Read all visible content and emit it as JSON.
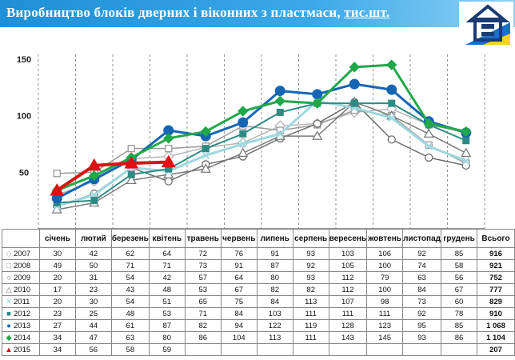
{
  "header": {
    "title_main": "Виробництво блоків дверних і віконних з пластмаси, ",
    "title_unit": "тис.шт."
  },
  "colors": {
    "header_bg": "#1f8fd6"
  },
  "icons": {
    "logo": "statistics-house-logo"
  },
  "chart_data": {
    "type": "line",
    "title": "Виробництво блоків дверних і віконних з пластмаси, тис.шт.",
    "xlabel": "",
    "ylabel": "",
    "categories": [
      "січень",
      "лютий",
      "березень",
      "квітень",
      "травень",
      "червень",
      "липень",
      "серпень",
      "вересень",
      "жовтень",
      "листопад",
      "грудень"
    ],
    "total_label": "Всього",
    "ylim": [
      0,
      150
    ],
    "yticks": [
      50,
      100,
      150
    ],
    "grid": "vertical dashed",
    "legend": "table-below",
    "series": [
      {
        "name": "2007",
        "color": "#b5b5b5",
        "marker": "diamond-open",
        "width": 1.5,
        "values": [
          30,
          42,
          62,
          64,
          72,
          76,
          91,
          93,
          103,
          106,
          92,
          85
        ],
        "total": "916"
      },
      {
        "name": "2008",
        "color": "#9a9a9a",
        "marker": "square-open",
        "width": 1.5,
        "values": [
          49,
          50,
          71,
          71,
          73,
          91,
          87,
          92,
          105,
          100,
          74,
          58
        ],
        "total": "921"
      },
      {
        "name": "2009",
        "color": "#6e6e6e",
        "marker": "circle-open",
        "width": 1.5,
        "values": [
          20,
          31,
          54,
          42,
          57,
          64,
          80,
          93,
          112,
          79,
          63,
          56
        ],
        "total": "752"
      },
      {
        "name": "2010",
        "color": "#7a7a7a",
        "marker": "triangle-open",
        "width": 1.5,
        "values": [
          17,
          23,
          43,
          48,
          53,
          67,
          82,
          82,
          112,
          100,
          84,
          67
        ],
        "total": "777"
      },
      {
        "name": "2011",
        "color": "#9fd8e0",
        "marker": "x",
        "width": 3,
        "values": [
          20,
          30,
          54,
          51,
          65,
          75,
          84,
          113,
          107,
          98,
          73,
          60
        ],
        "total": "829"
      },
      {
        "name": "2012",
        "color": "#2e8b84",
        "marker": "square",
        "width": 2,
        "values": [
          23,
          25,
          48,
          53,
          71,
          84,
          103,
          111,
          111,
          111,
          92,
          78
        ],
        "total": "910"
      },
      {
        "name": "2013",
        "color": "#1565b5",
        "marker": "circle",
        "width": 3,
        "values": [
          27,
          44,
          61,
          87,
          82,
          94,
          122,
          119,
          128,
          123,
          95,
          85
        ],
        "total": "1 068"
      },
      {
        "name": "2014",
        "color": "#20a84a",
        "marker": "diamond",
        "width": 3,
        "values": [
          34,
          47,
          63,
          80,
          86,
          104,
          113,
          111,
          143,
          145,
          93,
          86
        ],
        "total": "1 104"
      },
      {
        "name": "2015",
        "color": "#dd1111",
        "marker": "triangle",
        "width": 4,
        "values": [
          34,
          56,
          58,
          59,
          null,
          null,
          null,
          null,
          null,
          null,
          null,
          null
        ],
        "total": "207"
      }
    ]
  }
}
